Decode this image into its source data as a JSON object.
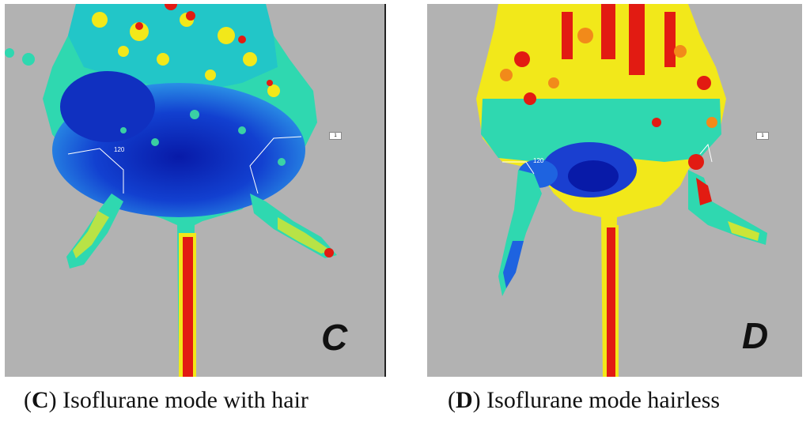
{
  "panels": [
    {
      "id": "C",
      "letter": "C",
      "caption_letter": "C",
      "caption_text": " Isoflurane mode with hair",
      "roi_label": "120",
      "marker": "1",
      "colors": {
        "background": "#b2b2b2",
        "cold": "#0a1fb8",
        "cool": "#1e63e0",
        "mid": "#2fd8b0",
        "warm": "#f2e81a",
        "hot": "#e21b12"
      }
    },
    {
      "id": "D",
      "letter": "D",
      "caption_letter": "D",
      "caption_text": " Isoflurane mode hairless",
      "roi_label": "120",
      "marker": "1",
      "colors": {
        "background": "#b2b2b2",
        "cold": "#0a1fb8",
        "cool": "#1e63e0",
        "mid": "#2fd8b0",
        "warm": "#f2e81a",
        "hot": "#e21b12"
      }
    }
  ]
}
